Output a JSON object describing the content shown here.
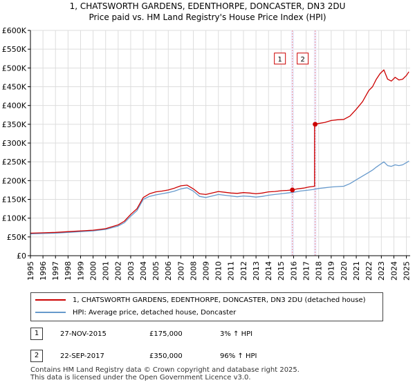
{
  "chart_data": {
    "type": "line",
    "title": "1, CHATSWORTH GARDENS, EDENTHORPE, DONCASTER, DN3 2DU",
    "subtitle": "Price paid vs. HM Land Registry's House Price Index (HPI)",
    "xlim": [
      1995,
      2025.3
    ],
    "ylim": [
      0,
      600000
    ],
    "xticks": [
      "1995",
      "1996",
      "1997",
      "1998",
      "1999",
      "2000",
      "2001",
      "2002",
      "2003",
      "2004",
      "2005",
      "2006",
      "2007",
      "2008",
      "2009",
      "2010",
      "2011",
      "2012",
      "2013",
      "2014",
      "2015",
      "2016",
      "2017",
      "2018",
      "2019",
      "2020",
      "2021",
      "2022",
      "2023",
      "2024",
      "2025"
    ],
    "yticks": [
      {
        "value": 0,
        "label": "£0"
      },
      {
        "value": 50000,
        "label": "£50K"
      },
      {
        "value": 100000,
        "label": "£100K"
      },
      {
        "value": 150000,
        "label": "£150K"
      },
      {
        "value": 200000,
        "label": "£200K"
      },
      {
        "value": 250000,
        "label": "£250K"
      },
      {
        "value": 300000,
        "label": "£300K"
      },
      {
        "value": 350000,
        "label": "£350K"
      },
      {
        "value": 400000,
        "label": "£400K"
      },
      {
        "value": 450000,
        "label": "£450K"
      },
      {
        "value": 500000,
        "label": "£500K"
      },
      {
        "value": 550000,
        "label": "£550K"
      },
      {
        "value": 600000,
        "label": "£600K"
      }
    ],
    "series": [
      {
        "name": "1, CHATSWORTH GARDENS, EDENTHORPE, DONCASTER, DN3 2DU (detached house)",
        "color": "#cc0000",
        "x": [
          1995.0,
          1996.0,
          1997.0,
          1998.0,
          1999.0,
          2000.0,
          2001.0,
          2002.0,
          2002.5,
          2003.0,
          2003.5,
          2004.0,
          2004.5,
          2005.0,
          2005.5,
          2006.0,
          2006.5,
          2007.0,
          2007.5,
          2008.0,
          2008.5,
          2009.0,
          2009.5,
          2010.0,
          2010.5,
          2011.0,
          2011.5,
          2012.0,
          2012.5,
          2013.0,
          2013.5,
          2014.0,
          2014.5,
          2015.0,
          2015.5,
          2015.9,
          2016.3,
          2016.8,
          2017.2,
          2017.67,
          2017.67,
          2018.0,
          2018.5,
          2019.0,
          2019.5,
          2020.0,
          2020.5,
          2021.0,
          2021.5,
          2022.0,
          2022.3,
          2022.6,
          2022.9,
          2023.2,
          2023.5,
          2023.8,
          2024.1,
          2024.4,
          2024.7,
          2025.0,
          2025.2
        ],
        "values": [
          60000,
          61000,
          62000,
          64000,
          66000,
          68000,
          72000,
          82000,
          92000,
          110000,
          125000,
          155000,
          165000,
          170000,
          172000,
          175000,
          180000,
          186000,
          188000,
          178000,
          165000,
          163000,
          167000,
          171000,
          169000,
          167000,
          166000,
          168000,
          167000,
          165000,
          167000,
          170000,
          171000,
          173000,
          174000,
          175000,
          178000,
          180000,
          183000,
          185000,
          350000,
          352000,
          355000,
          360000,
          362000,
          363000,
          372000,
          390000,
          410000,
          440000,
          450000,
          470000,
          485000,
          495000,
          470000,
          465000,
          475000,
          468000,
          470000,
          480000,
          490000
        ]
      },
      {
        "name": "HPI: Average price, detached house, Doncaster",
        "color": "#6699cc",
        "x": [
          1995.0,
          1996.0,
          1997.0,
          1998.0,
          1999.0,
          2000.0,
          2001.0,
          2002.0,
          2002.5,
          2003.0,
          2003.5,
          2004.0,
          2004.5,
          2005.0,
          2005.5,
          2006.0,
          2006.5,
          2007.0,
          2007.5,
          2008.0,
          2008.5,
          2009.0,
          2009.5,
          2010.0,
          2010.5,
          2011.0,
          2011.5,
          2012.0,
          2012.5,
          2013.0,
          2013.5,
          2014.0,
          2014.5,
          2015.0,
          2015.5,
          2016.0,
          2016.5,
          2017.0,
          2017.5,
          2018.0,
          2018.5,
          2019.0,
          2019.5,
          2020.0,
          2020.5,
          2021.0,
          2021.5,
          2022.0,
          2022.3,
          2022.6,
          2022.9,
          2023.2,
          2023.5,
          2023.8,
          2024.1,
          2024.4,
          2024.7,
          2025.0,
          2025.2
        ],
        "values": [
          58000,
          59000,
          60000,
          62000,
          64000,
          66000,
          70000,
          79000,
          88000,
          105000,
          120000,
          150000,
          158000,
          162000,
          165000,
          168000,
          172000,
          178000,
          181000,
          172000,
          158000,
          155000,
          159000,
          163000,
          161000,
          159000,
          157000,
          159000,
          158000,
          156000,
          158000,
          161000,
          163000,
          165000,
          167000,
          169000,
          172000,
          174000,
          176000,
          179000,
          181000,
          183000,
          184000,
          185000,
          192000,
          202000,
          212000,
          222000,
          228000,
          236000,
          243000,
          250000,
          240000,
          238000,
          242000,
          240000,
          242000,
          248000,
          252000
        ]
      }
    ],
    "sales": [
      {
        "label": "1",
        "x": 2015.9,
        "value": 175000
      },
      {
        "label": "2",
        "x": 2017.72,
        "value": 350000
      }
    ],
    "marker_boxes_value": 525000
  },
  "legend": {
    "items": [
      {
        "label": "1, CHATSWORTH GARDENS, EDENTHORPE, DONCASTER, DN3 2DU (detached house)",
        "color": "#cc0000"
      },
      {
        "label": "HPI: Average price, detached house, Doncaster",
        "color": "#6699cc"
      }
    ]
  },
  "transactions": [
    {
      "num": "1",
      "date": "27-NOV-2015",
      "price": "£175,000",
      "hpi": "3% ↑ HPI"
    },
    {
      "num": "2",
      "date": "22-SEP-2017",
      "price": "£350,000",
      "hpi": "96% ↑ HPI"
    }
  ],
  "footer": {
    "line1": "Contains HM Land Registry data © Crown copyright and database right 2025.",
    "line2": "This data is licensed under the Open Government Licence v3.0."
  },
  "colors": {
    "grid": "#dddddd",
    "sale_band": "#eeeeff",
    "sale_line": "#ee8888",
    "axis": "#000000"
  }
}
